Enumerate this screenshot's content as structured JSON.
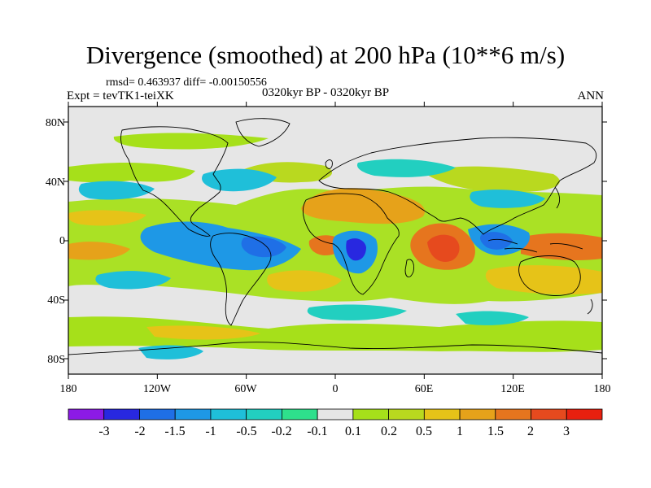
{
  "title": "Divergence (smoothed) at 200 hPa (10**6 m/s)",
  "stats_line": "rmsd= 0.463937 diff= -0.00150556",
  "experiment": "Expt = tevTK1-teiXK",
  "period": "0320kyr BP - 0320kyr BP",
  "season": "ANN",
  "axes": {
    "lat_labels": [
      "80N",
      "40N",
      "0",
      "40S",
      "80S"
    ],
    "lon_labels": [
      "180",
      "120W",
      "60W",
      "0",
      "60E",
      "120E",
      "180"
    ]
  },
  "colorbar": {
    "labels": [
      "-3",
      "-2",
      "-1.5",
      "-1",
      "-0.5",
      "-0.2",
      "-0.1",
      "0.1",
      "0.2",
      "0.5",
      "1",
      "1.5",
      "2",
      "3"
    ],
    "colors": [
      "#8c1ae6",
      "#2828e0",
      "#1f6fe6",
      "#1e98e6",
      "#1fbfd9",
      "#22cfc0",
      "#2ee08c",
      "#e6e6e6",
      "#a6e01a",
      "#b9d91f",
      "#e6c318",
      "#e6a21a",
      "#e6751e",
      "#e64a1e",
      "#e8200f"
    ]
  },
  "colors": {
    "land_outline": "#000000",
    "background": "#ffffff",
    "neutral_field": "#e6e6e6"
  }
}
